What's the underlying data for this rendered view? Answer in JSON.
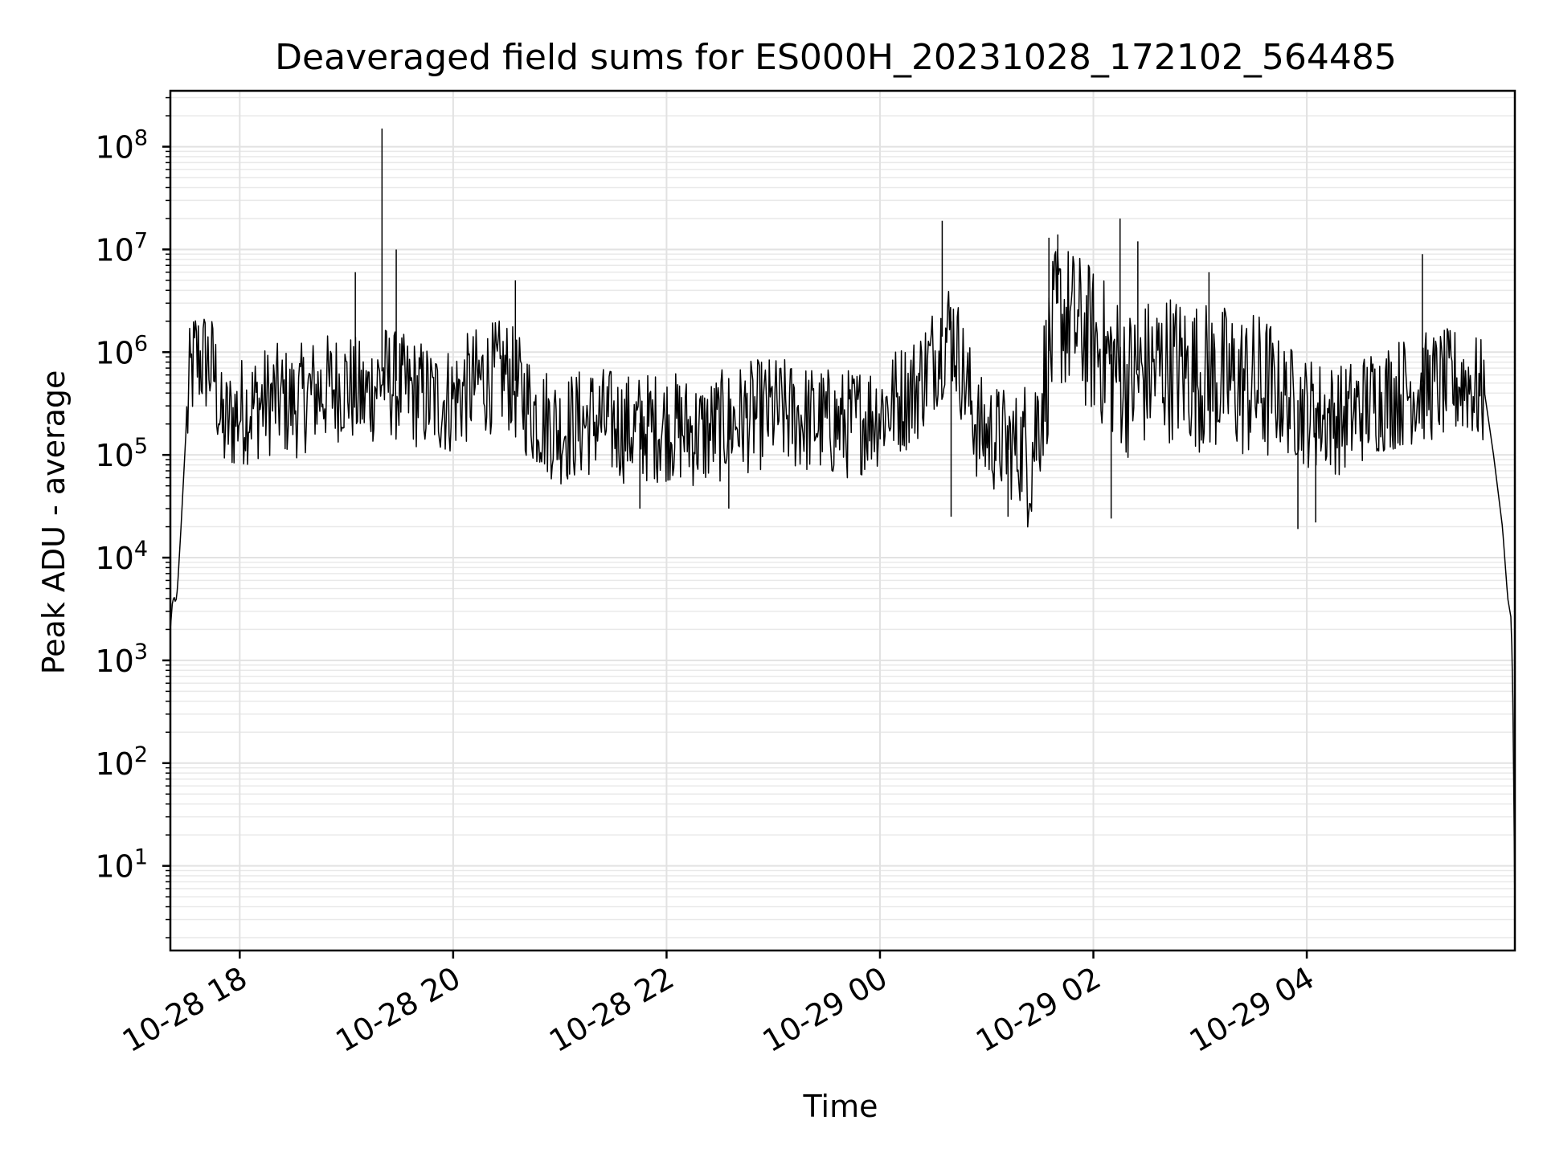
{
  "chart_data": {
    "type": "line",
    "title": "Deaveraged field sums for ES000H_20231028_172102_564485",
    "xlabel": "Time",
    "ylabel": "Peak ADU - average",
    "yscale": "log",
    "ylim": [
      1.5,
      350000000.0
    ],
    "xlim": [
      "2023-10-28 17:21",
      "2023-10-29 05:57"
    ],
    "grid": true,
    "x_ticks": [
      {
        "t": "2023-10-28 18:00",
        "label": "10-28 18"
      },
      {
        "t": "2023-10-28 20:00",
        "label": "10-28 20"
      },
      {
        "t": "2023-10-28 22:00",
        "label": "10-28 22"
      },
      {
        "t": "2023-10-29 00:00",
        "label": "10-29 00"
      },
      {
        "t": "2023-10-29 02:00",
        "label": "10-29 02"
      },
      {
        "t": "2023-10-29 04:00",
        "label": "10-29 04"
      }
    ],
    "y_ticks": [
      {
        "v": 10,
        "base": "10",
        "exp": "1"
      },
      {
        "v": 100,
        "base": "10",
        "exp": "2"
      },
      {
        "v": 1000,
        "base": "10",
        "exp": "3"
      },
      {
        "v": 10000,
        "base": "10",
        "exp": "4"
      },
      {
        "v": 100000,
        "base": "10",
        "exp": "5"
      },
      {
        "v": 1000000,
        "base": "10",
        "exp": "6"
      },
      {
        "v": 10000000,
        "base": "10",
        "exp": "7"
      },
      {
        "v": 100000000,
        "base": "10",
        "exp": "8"
      }
    ],
    "series": [
      {
        "color": "#000000",
        "x": [
          "2023-10-28 17:21",
          "2023-10-28 17:22",
          "2023-10-28 17:23",
          "2023-10-28 17:24",
          "2023-10-28 17:25",
          "2023-10-28 17:27",
          "2023-10-28 17:30",
          "2023-10-28 17:32",
          "2023-10-28 17:35",
          "2023-10-28 17:38",
          "2023-10-28 17:42",
          "2023-10-28 17:46",
          "2023-10-28 17:50",
          "2023-10-28 17:55",
          "2023-10-28 18:00",
          "2023-10-28 18:10",
          "2023-10-28 18:20",
          "2023-10-28 18:30",
          "2023-10-28 18:40",
          "2023-10-28 18:50",
          "2023-10-28 19:00",
          "2023-10-28 19:10",
          "2023-10-28 19:20",
          "2023-10-28 19:30",
          "2023-10-28 19:40",
          "2023-10-28 19:50",
          "2023-10-28 20:00",
          "2023-10-28 20:15",
          "2023-10-28 20:30",
          "2023-10-28 20:45",
          "2023-10-28 21:00",
          "2023-10-28 21:20",
          "2023-10-28 21:40",
          "2023-10-28 22:00",
          "2023-10-28 22:20",
          "2023-10-28 22:40",
          "2023-10-28 23:00",
          "2023-10-28 23:20",
          "2023-10-28 23:40",
          "2023-10-29 00:00",
          "2023-10-29 00:20",
          "2023-10-29 00:40",
          "2023-10-29 00:55",
          "2023-10-29 01:10",
          "2023-10-29 01:25",
          "2023-10-29 01:40",
          "2023-10-29 02:00",
          "2023-10-29 02:20",
          "2023-10-29 02:40",
          "2023-10-29 03:00",
          "2023-10-29 03:20",
          "2023-10-29 03:40",
          "2023-10-29 04:00",
          "2023-10-29 04:20",
          "2023-10-29 04:40",
          "2023-10-29 05:00",
          "2023-10-29 05:20",
          "2023-10-29 05:30",
          "2023-10-29 05:40",
          "2023-10-29 05:45",
          "2023-10-29 05:50",
          "2023-10-29 05:53",
          "2023-10-29 05:55",
          "2023-10-29 05:56",
          "2023-10-29 05:57"
        ],
        "values": [
          2000,
          3500,
          4200,
          3600,
          5000,
          20000,
          200000,
          600000,
          1000000,
          950000,
          900000,
          700000,
          200000,
          250000,
          300000,
          350000,
          400000,
          350000,
          450000,
          500000,
          550000,
          400000,
          650000,
          500000,
          450000,
          380000,
          400000,
          600000,
          700000,
          300000,
          200000,
          250000,
          200000,
          220000,
          180000,
          250000,
          300000,
          250000,
          220000,
          300000,
          500000,
          2000000,
          200000,
          150000,
          120000,
          3000000,
          1500000,
          600000,
          900000,
          700000,
          600000,
          500000,
          300000,
          250000,
          400000,
          500000,
          550000,
          600000,
          400000,
          100000,
          20000,
          4000,
          2500,
          300,
          4
        ]
      }
    ],
    "spikes": [
      {
        "t": "2023-10-28 19:20",
        "v": 150000000
      },
      {
        "t": "2023-10-28 19:28",
        "v": 10000000
      },
      {
        "t": "2023-10-28 19:05",
        "v": 6000000
      },
      {
        "t": "2023-10-29 00:35",
        "v": 19000000
      },
      {
        "t": "2023-10-29 01:40",
        "v": 14000000
      },
      {
        "t": "2023-10-29 02:15",
        "v": 20000000
      },
      {
        "t": "2023-10-29 01:35",
        "v": 13000000
      },
      {
        "t": "2023-10-29 02:25",
        "v": 12000000
      },
      {
        "t": "2023-10-29 05:05",
        "v": 9000000
      },
      {
        "t": "2023-10-28 20:35",
        "v": 5000000
      },
      {
        "t": "2023-10-29 03:05",
        "v": 6000000
      }
    ],
    "dips": [
      {
        "t": "2023-10-28 21:45",
        "v": 30000
      },
      {
        "t": "2023-10-28 22:35",
        "v": 30000
      },
      {
        "t": "2023-10-29 00:40",
        "v": 25000
      },
      {
        "t": "2023-10-29 01:12",
        "v": 25000
      },
      {
        "t": "2023-10-29 02:10",
        "v": 24000
      },
      {
        "t": "2023-10-29 03:55",
        "v": 19000
      },
      {
        "t": "2023-10-29 04:05",
        "v": 22000
      }
    ]
  }
}
